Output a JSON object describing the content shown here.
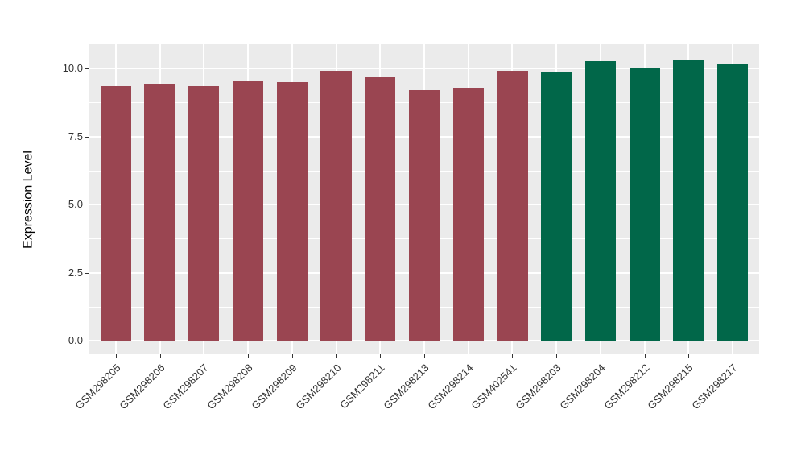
{
  "figure": {
    "panel_background": "#EBEBEB",
    "grid_color": "#FFFFFF",
    "axis_text_color": "#333333",
    "axis_title_color": "#000000"
  },
  "chart_data": {
    "type": "bar",
    "title": "",
    "xlabel": "",
    "ylabel": "Expression Level",
    "legend": "none",
    "grid": true,
    "categories": [
      "GSM298205",
      "GSM298206",
      "GSM298207",
      "GSM298208",
      "GSM298209",
      "GSM298210",
      "GSM298211",
      "GSM298213",
      "GSM298214",
      "GSM402541",
      "GSM298203",
      "GSM298204",
      "GSM298212",
      "GSM298215",
      "GSM298217"
    ],
    "values": [
      9.36,
      9.45,
      9.36,
      9.57,
      9.51,
      9.92,
      9.69,
      9.21,
      9.3,
      9.9,
      9.87,
      10.28,
      10.03,
      10.34,
      10.16
    ],
    "bar_colors": [
      "#9A4551",
      "#9A4551",
      "#9A4551",
      "#9A4551",
      "#9A4551",
      "#9A4551",
      "#9A4551",
      "#9A4551",
      "#9A4551",
      "#9A4551",
      "#016749",
      "#016749",
      "#016749",
      "#016749",
      "#016749"
    ],
    "group_colors": {
      "group_1": "#9A4551",
      "group_2": "#016749"
    },
    "y_tick_labels": [
      "0.0",
      "2.5",
      "5.0",
      "7.5",
      "10.0"
    ],
    "y_tick_values": [
      0,
      2.5,
      5,
      7.5,
      10
    ],
    "y_minor_tick_values": [
      1.25,
      3.75,
      6.25,
      8.75
    ],
    "ylim_display": [
      -0.5,
      10.89
    ],
    "bar_width_fraction": 0.7,
    "category_padding_units": 0.6
  }
}
